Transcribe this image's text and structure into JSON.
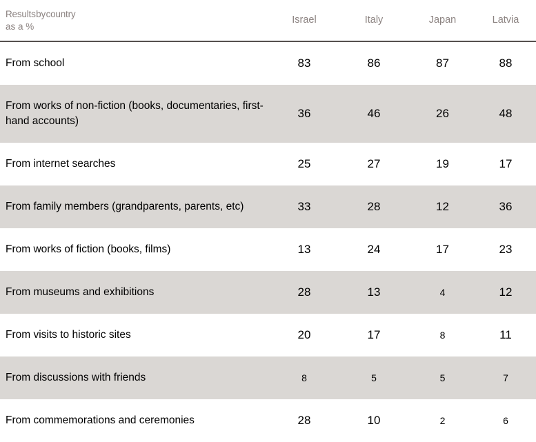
{
  "table": {
    "title": {
      "line1": "Results by country",
      "line2": "as a %"
    },
    "columns": [
      "Israel",
      "Italy",
      "Japan",
      "Latvia"
    ],
    "rows": [
      {
        "label": "From school",
        "values": [
          "83",
          "86",
          "87",
          "88"
        ]
      },
      {
        "label": "From works of non-fiction (books, documentaries, first-hand accounts)",
        "values": [
          "36",
          "46",
          "26",
          "48"
        ]
      },
      {
        "label": "From internet searches",
        "values": [
          "25",
          "27",
          "19",
          "17"
        ]
      },
      {
        "label": "From family members (grandparents, parents, etc)",
        "values": [
          "33",
          "28",
          "12",
          "36"
        ]
      },
      {
        "label": "From works of fiction (books, films)",
        "values": [
          "13",
          "24",
          "17",
          "23"
        ]
      },
      {
        "label": "From museums and exhibitions",
        "values": [
          "28",
          "13",
          "4",
          "12"
        ]
      },
      {
        "label": "From visits to historic sites",
        "values": [
          "20",
          "17",
          "8",
          "11"
        ]
      },
      {
        "label": "From discussions with friends",
        "values": [
          "8",
          "5",
          "5",
          "7"
        ]
      },
      {
        "label": "From commemorations and ceremonies",
        "values": [
          "28",
          "10",
          "2",
          "6"
        ]
      }
    ]
  },
  "colors": {
    "row_shade": "#dad7d4",
    "header_text": "#8b8280",
    "rule_line": "#55504e",
    "body_text": "#000000"
  },
  "chart_data": {
    "type": "table",
    "title": "Results by country as a %",
    "columns": [
      "Israel",
      "Italy",
      "Japan",
      "Latvia"
    ],
    "row_labels": [
      "From school",
      "From works of non-fiction (books, documentaries, first-hand accounts)",
      "From internet searches",
      "From family members (grandparents, parents, etc)",
      "From works of fiction (books, films)",
      "From museums and exhibitions",
      "From visits to historic sites",
      "From discussions with friends",
      "From commemorations and ceremonies"
    ],
    "values": [
      [
        83,
        86,
        87,
        88
      ],
      [
        36,
        46,
        26,
        48
      ],
      [
        25,
        27,
        19,
        17
      ],
      [
        33,
        28,
        12,
        36
      ],
      [
        13,
        24,
        17,
        23
      ],
      [
        28,
        13,
        4,
        12
      ],
      [
        20,
        17,
        8,
        11
      ],
      [
        8,
        5,
        5,
        7
      ],
      [
        28,
        10,
        2,
        6
      ]
    ]
  }
}
